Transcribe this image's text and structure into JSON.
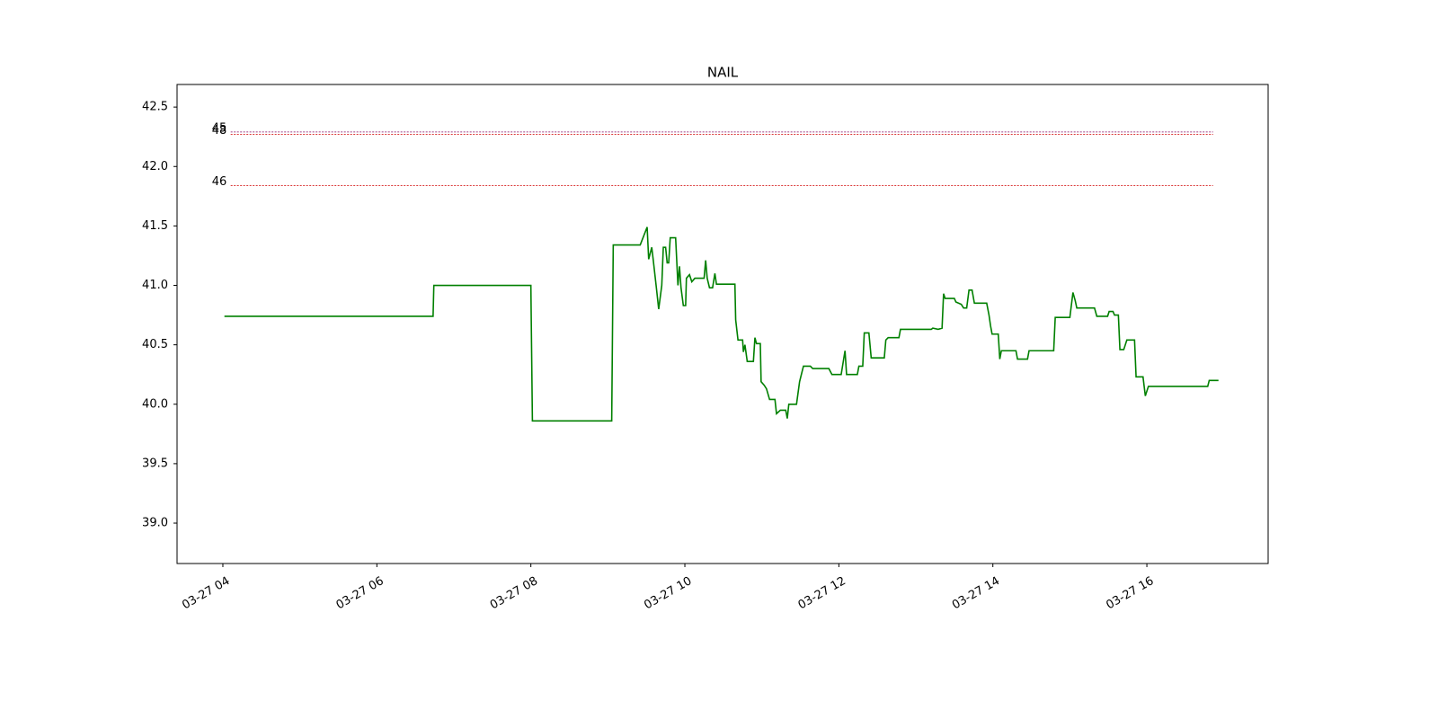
{
  "chart_data": {
    "type": "line",
    "title": "NAIL",
    "x": [
      4.02,
      6.73,
      6.74,
      8.0,
      8.02,
      9.05,
      9.07,
      9.42,
      9.51,
      9.53,
      9.57,
      9.59,
      9.63,
      9.66,
      9.7,
      9.72,
      9.75,
      9.77,
      9.79,
      9.81,
      9.88,
      9.91,
      9.93,
      9.95,
      9.98,
      10.01,
      10.02,
      10.06,
      10.09,
      10.13,
      10.25,
      10.27,
      10.29,
      10.32,
      10.36,
      10.39,
      10.41,
      10.65,
      10.66,
      10.69,
      10.75,
      10.76,
      10.78,
      10.81,
      10.89,
      10.91,
      10.93,
      10.98,
      10.99,
      11.03,
      11.06,
      11.1,
      11.17,
      11.19,
      11.24,
      11.31,
      11.33,
      11.35,
      11.45,
      11.49,
      11.54,
      11.63,
      11.66,
      11.87,
      11.91,
      12.03,
      12.08,
      12.1,
      12.24,
      12.26,
      12.31,
      12.33,
      12.39,
      12.42,
      12.59,
      12.61,
      12.64,
      12.78,
      12.8,
      13.2,
      13.22,
      13.29,
      13.34,
      13.36,
      13.38,
      13.5,
      13.52,
      13.59,
      13.62,
      13.66,
      13.69,
      13.73,
      13.76,
      13.92,
      13.95,
      13.97,
      13.99,
      14.07,
      14.09,
      14.11,
      14.3,
      14.32,
      14.45,
      14.47,
      14.79,
      14.81,
      15.0,
      15.04,
      15.07,
      15.09,
      15.32,
      15.35,
      15.49,
      15.51,
      15.56,
      15.58,
      15.63,
      15.65,
      15.7,
      15.74,
      15.84,
      15.86,
      15.95,
      15.98,
      16.02,
      16.79,
      16.81,
      16.93
    ],
    "series": [
      {
        "color": "#008000",
        "values": [
          40.74,
          40.74,
          41.0,
          41.0,
          39.86,
          39.86,
          41.34,
          41.34,
          41.49,
          41.22,
          41.32,
          41.21,
          40.98,
          40.8,
          41.0,
          41.32,
          41.32,
          41.19,
          41.19,
          41.4,
          41.4,
          41.0,
          41.16,
          40.98,
          40.83,
          40.83,
          41.06,
          41.09,
          41.03,
          41.06,
          41.06,
          41.21,
          41.06,
          40.98,
          40.98,
          41.1,
          41.01,
          41.01,
          40.71,
          40.54,
          40.54,
          40.44,
          40.5,
          40.36,
          40.36,
          40.56,
          40.51,
          40.51,
          40.19,
          40.16,
          40.13,
          40.04,
          40.04,
          39.92,
          39.95,
          39.95,
          39.88,
          40.0,
          40.0,
          40.19,
          40.32,
          40.32,
          40.3,
          40.3,
          40.25,
          40.25,
          40.45,
          40.25,
          40.25,
          40.32,
          40.32,
          40.6,
          40.6,
          40.39,
          40.39,
          40.54,
          40.56,
          40.56,
          40.63,
          40.63,
          40.64,
          40.63,
          40.64,
          40.93,
          40.89,
          40.89,
          40.86,
          40.84,
          40.81,
          40.81,
          40.96,
          40.96,
          40.85,
          40.85,
          40.75,
          40.66,
          40.59,
          40.59,
          40.38,
          40.45,
          40.45,
          40.38,
          40.38,
          40.45,
          40.45,
          40.73,
          40.73,
          40.94,
          40.87,
          40.81,
          40.81,
          40.74,
          40.74,
          40.78,
          40.78,
          40.75,
          40.75,
          40.46,
          40.46,
          40.54,
          40.54,
          40.23,
          40.23,
          40.07,
          40.15,
          40.15,
          40.2,
          40.2
        ]
      }
    ],
    "hlines": [
      {
        "label": "45",
        "value": 42.29,
        "color": "#800060"
      },
      {
        "label": "48",
        "value": 42.27,
        "color": "#d62020"
      },
      {
        "label": "46",
        "value": 41.84,
        "color": "#d62020"
      }
    ],
    "xlim": [
      3.405,
      17.575
    ],
    "ylim": [
      38.66,
      42.69
    ],
    "xticks": [
      {
        "value": 4,
        "label": "03-27 04"
      },
      {
        "value": 6,
        "label": "03-27 06"
      },
      {
        "value": 8,
        "label": "03-27 08"
      },
      {
        "value": 10,
        "label": "03-27 10"
      },
      {
        "value": 12,
        "label": "03-27 12"
      },
      {
        "value": 14,
        "label": "03-27 14"
      },
      {
        "value": 16,
        "label": "03-27 16"
      }
    ],
    "yticks": [
      {
        "value": 39,
        "label": "39.0"
      },
      {
        "value": 39.5,
        "label": "39.5"
      },
      {
        "value": 40,
        "label": "40.0"
      },
      {
        "value": 40.5,
        "label": "40.5"
      },
      {
        "value": 41,
        "label": "41.0"
      },
      {
        "value": 41.5,
        "label": "41.5"
      },
      {
        "value": 42,
        "label": "42.0"
      },
      {
        "value": 42.5,
        "label": "42.5"
      }
    ]
  }
}
